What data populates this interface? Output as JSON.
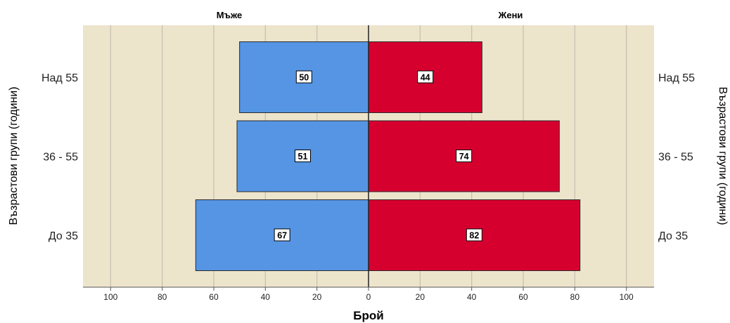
{
  "chart_data": {
    "type": "bar",
    "subtype": "population-pyramid",
    "panels": [
      "Мъже",
      "Жени"
    ],
    "categories": [
      "Над 55",
      "36 - 55",
      "До 35"
    ],
    "series": [
      {
        "name": "Мъже",
        "values": [
          50,
          51,
          67
        ],
        "color": "#5595e4"
      },
      {
        "name": "Жени",
        "values": [
          44,
          74,
          82
        ],
        "color": "#d6002f"
      }
    ],
    "xlabel": "Брой",
    "ylabel": "Възрастови групи (години)",
    "xlim": [
      -110,
      110
    ],
    "xticks": [
      -100,
      -80,
      -60,
      -40,
      -20,
      0,
      20,
      40,
      60,
      80,
      100
    ],
    "xtick_labels": [
      "100",
      "80",
      "60",
      "40",
      "20",
      "0",
      "20",
      "40",
      "60",
      "80",
      "100"
    ],
    "grid": true,
    "background": "#ede4cc"
  }
}
